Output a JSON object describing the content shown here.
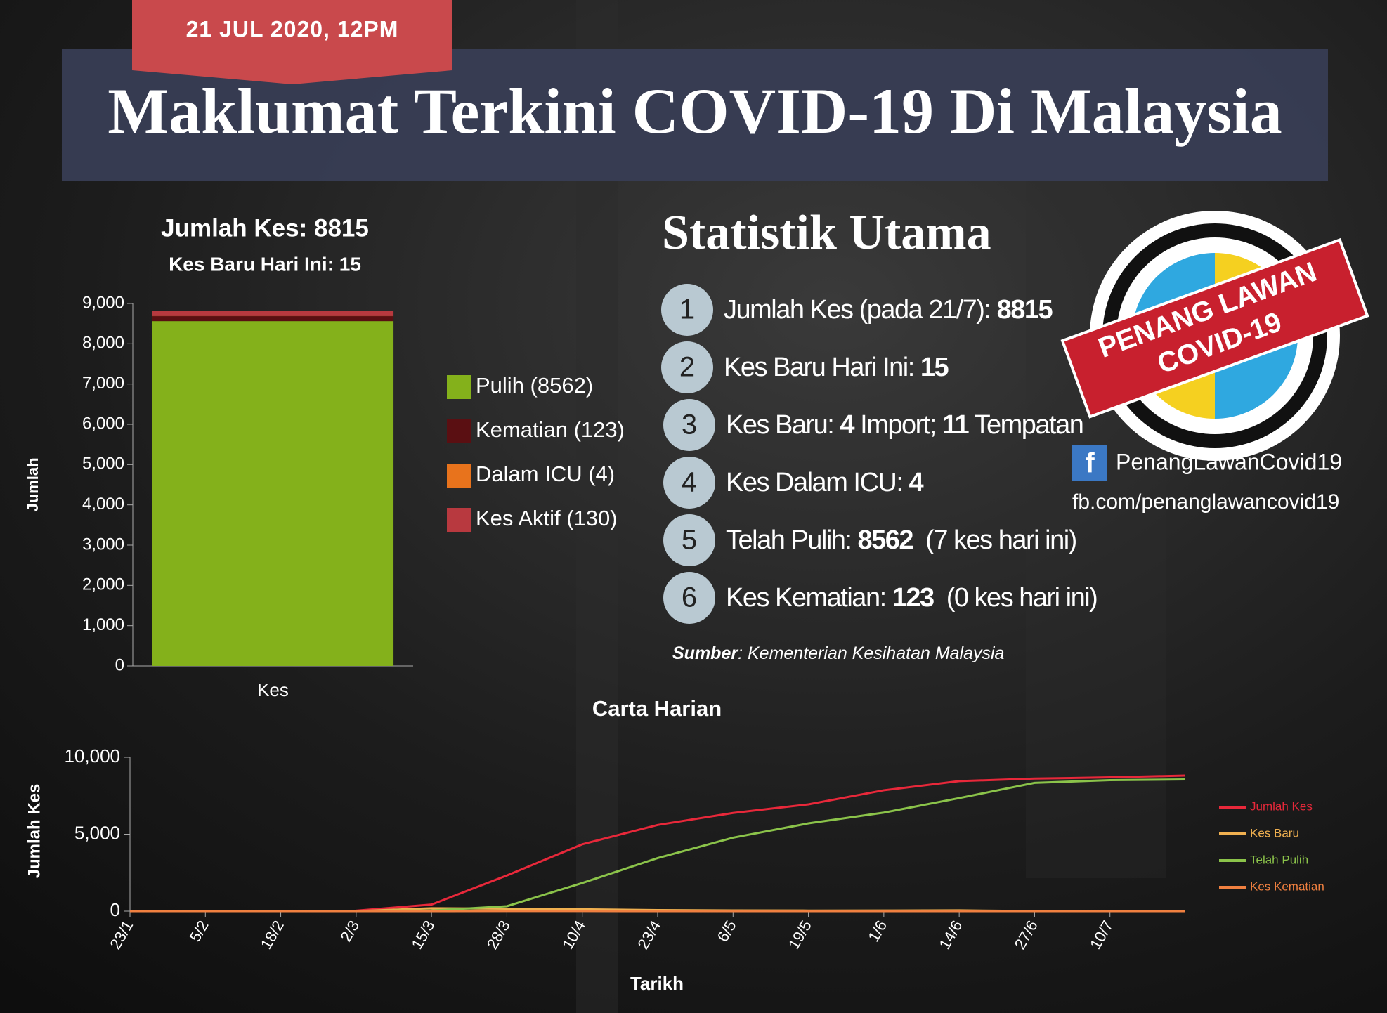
{
  "header": {
    "date": "21 JUL 2020, 12PM",
    "title": "Maklumat Terkini COVID-19 Di Malaysia"
  },
  "chart_data": [
    {
      "type": "bar",
      "stacked": true,
      "title": "Jumlah Kes: 8815",
      "subtitle": "Kes Baru Hari Ini: 15",
      "y_label": "Jumlah",
      "categories": [
        "Kes"
      ],
      "series": [
        {
          "name": "Pulih (8562)",
          "color": "#84b11b",
          "values": [
            8562
          ]
        },
        {
          "name": "Kematian (123)",
          "color": "#5a0f12",
          "values": [
            123
          ]
        },
        {
          "name": "Dalam ICU (4)",
          "color": "#e8731c",
          "values": [
            4
          ]
        },
        {
          "name": "Kes Aktif (130)",
          "color": "#b8393f",
          "values": [
            130
          ]
        }
      ],
      "ylim": [
        0,
        9000
      ],
      "yticks": [
        0,
        {
          "value": 1000,
          "label": "1,000"
        },
        {
          "value": 2000,
          "label": "2,000"
        },
        {
          "value": 3000,
          "label": "3,000"
        },
        {
          "value": 4000,
          "label": "4,000"
        },
        {
          "value": 5000,
          "label": "5,000"
        },
        {
          "value": 6000,
          "label": "6,000"
        },
        {
          "value": 7000,
          "label": "7,000"
        },
        {
          "value": 8000,
          "label": "8,000"
        },
        {
          "value": 9000,
          "label": "9,000"
        }
      ]
    },
    {
      "type": "line",
      "title": "Carta Harian",
      "x_label": "Tarikh",
      "y_label": "Jumlah Kes",
      "categories": [
        "23/1",
        "5/2",
        "18/2",
        "2/3",
        "15/3",
        "28/3",
        "10/4",
        "23/4",
        "6/5",
        "19/5",
        "1/6",
        "14/6",
        "27/6",
        "10/7",
        null
      ],
      "series": [
        {
          "name": "Jumlah Kes",
          "color": "#e8283a",
          "values": [
            3,
            12,
            22,
            29,
            428,
            2320,
            4346,
            5603,
            6383,
            6941,
            7857,
            8453,
            8616,
            8696,
            8815
          ]
        },
        {
          "name": "Kes Baru",
          "color": "#f0b050",
          "values": [
            0,
            2,
            0,
            0,
            190,
            159,
            118,
            71,
            45,
            37,
            38,
            51,
            4,
            8,
            15
          ]
        },
        {
          "name": "Telah Pulih",
          "color": "#8bc34a",
          "values": [
            0,
            0,
            15,
            22,
            42,
            320,
            1830,
            3452,
            4776,
            5706,
            6404,
            7349,
            8338,
            8517,
            8562
          ]
        },
        {
          "name": "Kes Kematian",
          "color": "#f08040",
          "values": [
            0,
            0,
            0,
            0,
            0,
            5,
            3,
            2,
            0,
            0,
            0,
            0,
            0,
            0,
            0
          ]
        }
      ],
      "ylim": [
        0,
        10000
      ],
      "yticks": [
        0,
        {
          "value": 5000,
          "label": "5,000"
        },
        {
          "value": 10000,
          "label": "10,000"
        }
      ]
    }
  ],
  "stats": {
    "title": "Statistik Utama",
    "items": [
      {
        "num": "1",
        "parts": [
          {
            "text": "Jumlah Kes (pada 21/7): ",
            "bold": false
          },
          {
            "text": "8815",
            "bold": true
          }
        ]
      },
      {
        "num": "2",
        "parts": [
          {
            "text": "Kes Baru Hari Ini: ",
            "bold": false
          },
          {
            "text": "15",
            "bold": true
          }
        ]
      },
      {
        "num": "3",
        "parts": [
          {
            "text": "Kes Baru: ",
            "bold": false
          },
          {
            "text": "4",
            "bold": true
          },
          {
            "text": " Import; ",
            "bold": false
          },
          {
            "text": "11",
            "bold": true
          },
          {
            "text": " Tempatan",
            "bold": false
          }
        ]
      },
      {
        "num": "4",
        "parts": [
          {
            "text": "Kes Dalam ICU: ",
            "bold": false
          },
          {
            "text": "4",
            "bold": true
          }
        ]
      },
      {
        "num": "5",
        "parts": [
          {
            "text": "Telah Pulih: ",
            "bold": false
          },
          {
            "text": "8562",
            "bold": true
          },
          {
            "text": "  (7 kes hari ini)",
            "bold": false
          }
        ]
      },
      {
        "num": "6",
        "parts": [
          {
            "text": "Kes Kematian: ",
            "bold": false
          },
          {
            "text": "123",
            "bold": true
          },
          {
            "text": "  (0 kes hari ini)",
            "bold": false
          }
        ]
      }
    ],
    "source_label": "Sumber",
    "source_text": ": Kementerian Kesihatan Malaysia"
  },
  "logo": {
    "line1": "PENANG LAWAN",
    "line2": "COVID-19"
  },
  "social": {
    "icon": "f",
    "page": "PenangLawanCovid19",
    "url": "fb.com/penanglawancovid19"
  }
}
